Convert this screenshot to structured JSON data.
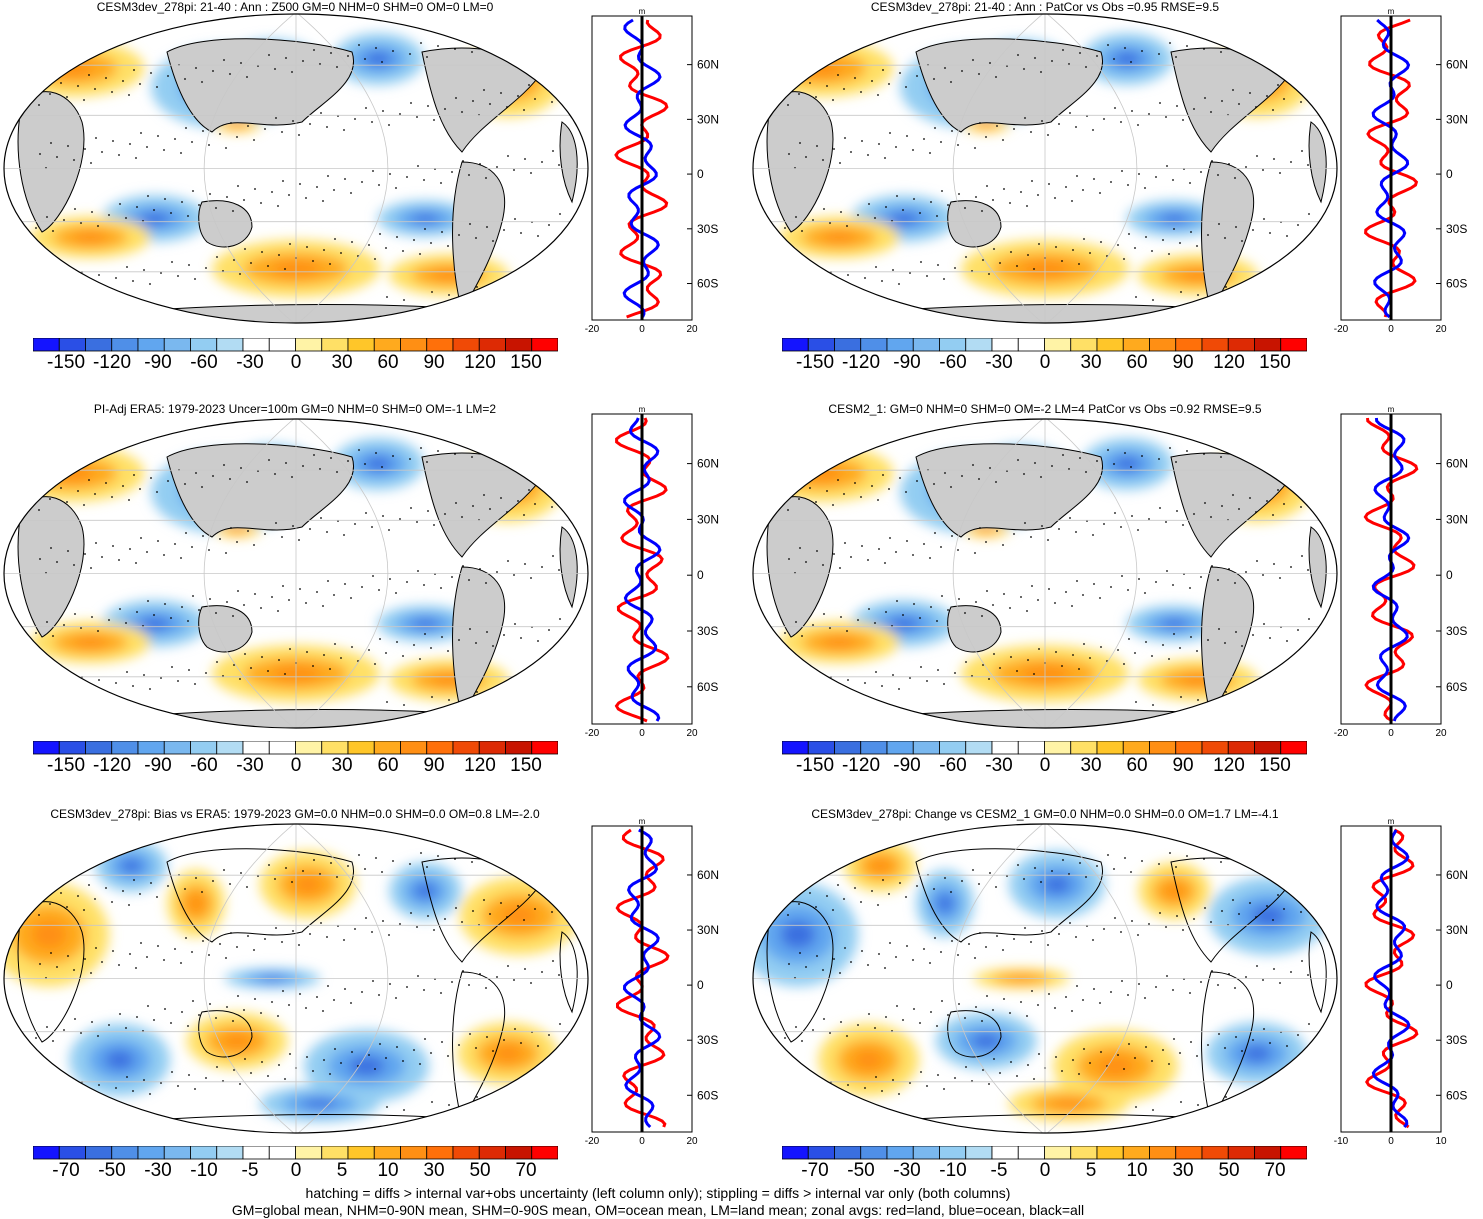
{
  "panels": [
    {
      "title": "CESM3dev_278pi: 21-40 : Ann : Z500 GM=0 NHM=0 SHM=0 OM=0 LM=0",
      "scale": "z500",
      "zonal_ticks": [
        "-20",
        "0",
        "20"
      ],
      "zonal_unit": "m",
      "lat_labels": [
        "60N",
        "30N",
        "0",
        "30S",
        "60S"
      ],
      "sign": 1
    },
    {
      "title": "CESM3dev_278pi: 21-40 : Ann : PatCor vs Obs =0.95 RMSE=9.5",
      "scale": "z500",
      "zonal_ticks": [
        "-20",
        "0",
        "20"
      ],
      "zonal_unit": "m",
      "lat_labels": [
        "60N",
        "30N",
        "0",
        "30S",
        "60S"
      ],
      "sign": 1
    },
    {
      "title": "PI-Adj ERA5: 1979-2023 Uncer=100m GM=0 NHM=0 SHM=0 OM=-1 LM=2",
      "scale": "z500",
      "zonal_ticks": [
        "-20",
        "0",
        "20"
      ],
      "zonal_unit": "m",
      "lat_labels": [
        "60N",
        "30N",
        "0",
        "30S",
        "60S"
      ],
      "sign": 1
    },
    {
      "title": "CESM2_1: GM=0 NHM=0 SHM=0 OM=-2 LM=4 PatCor vs Obs =0.92 RMSE=9.5",
      "scale": "z500",
      "zonal_ticks": [
        "-20",
        "0",
        "20"
      ],
      "zonal_unit": "m",
      "lat_labels": [
        "60N",
        "30N",
        "0",
        "30S",
        "60S"
      ],
      "sign": 1
    },
    {
      "title": "CESM3dev_278pi: Bias vs ERA5: 1979-2023 GM=0.0 NHM=0.0 SHM=0.0 OM=0.8 LM=-2.0",
      "scale": "diff",
      "zonal_ticks": [
        "-20",
        "0",
        "20"
      ],
      "zonal_unit": "m",
      "lat_labels": [
        "60N",
        "30N",
        "0",
        "30S",
        "60S"
      ],
      "sign": -1
    },
    {
      "title": "CESM3dev_278pi: Change vs CESM2_1 GM=0.0 NHM=0.0 SHM=0.0 OM=1.7 LM=-4.1",
      "scale": "diff",
      "zonal_ticks": [
        "-10",
        "0",
        "10"
      ],
      "zonal_unit": "m",
      "lat_labels": [
        "60N",
        "30N",
        "0",
        "30S",
        "60S"
      ],
      "sign": 1
    }
  ],
  "colorbars": {
    "z500": {
      "labels": [
        "-150",
        "-120",
        "-90",
        "-60",
        "-30",
        "0",
        "30",
        "60",
        "90",
        "120",
        "150"
      ]
    },
    "diff": {
      "labels": [
        "-70",
        "-50",
        "-30",
        "-10",
        "-5",
        "0",
        "5",
        "10",
        "30",
        "50",
        "70"
      ]
    }
  },
  "palette": [
    "#1414ff",
    "#2a4fe6",
    "#3a6fe0",
    "#4f8fe8",
    "#61a6ef",
    "#7ab8ef",
    "#93cdf2",
    "#b2dcf3",
    "#ffffff",
    "#ffffff",
    "#fff3a6",
    "#ffe066",
    "#ffc629",
    "#ffaa1e",
    "#ff8f14",
    "#ff700a",
    "#f04a06",
    "#dd2a04",
    "#c81400",
    "#ff0000"
  ],
  "colors": {
    "land": "#cccccc",
    "ocean_line": "#0000ff",
    "land_line": "#ff0000",
    "all_line": "#000000"
  },
  "footer": {
    "line1": "hatching = diffs > internal var+obs uncertainty (left column only); stippling = diffs > internal var only (both columns)",
    "line2": "GM=global mean, NHM=0-90N mean, SHM=0-90S mean, OM=ocean mean, LM=land mean; zonal avgs: red=land, blue=ocean, black=all"
  }
}
